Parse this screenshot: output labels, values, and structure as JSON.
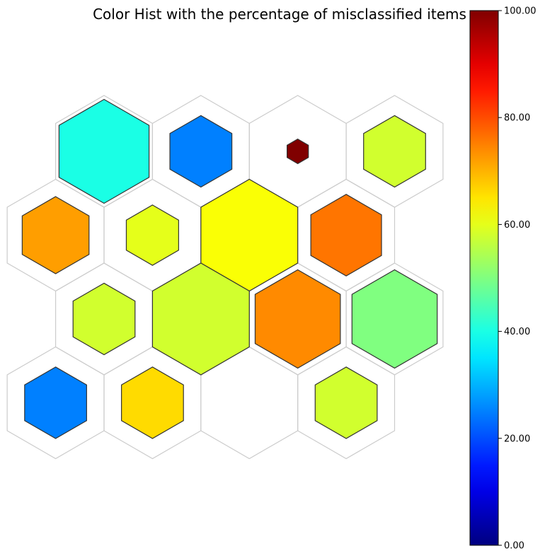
{
  "chart_data": {
    "type": "heatmap",
    "subtype": "hexagonal-som-grid",
    "title": "Color Hist with the percentage of misclassified items",
    "colormap": "jet",
    "colorbar": {
      "range": [
        0,
        100
      ],
      "ticks": [
        "0.00",
        "20.00",
        "40.00",
        "60.00",
        "80.00",
        "100.00"
      ],
      "position": "right"
    },
    "grid": {
      "rows": 4,
      "cols": 4
    },
    "cells": [
      {
        "row": 0,
        "col": 0,
        "percent": 40,
        "relative_size": 0.93
      },
      {
        "row": 0,
        "col": 1,
        "percent": 25,
        "relative_size": 0.64
      },
      {
        "row": 0,
        "col": 2,
        "percent": 100,
        "relative_size": 0.22
      },
      {
        "row": 0,
        "col": 3,
        "percent": 58,
        "relative_size": 0.64
      },
      {
        "row": 1,
        "col": 0,
        "percent": 72,
        "relative_size": 0.69
      },
      {
        "row": 1,
        "col": 1,
        "percent": 60,
        "relative_size": 0.54
      },
      {
        "row": 1,
        "col": 2,
        "percent": 62,
        "relative_size": 1.0
      },
      {
        "row": 1,
        "col": 3,
        "percent": 76,
        "relative_size": 0.73
      },
      {
        "row": 2,
        "col": 0,
        "percent": 58,
        "relative_size": 0.64
      },
      {
        "row": 2,
        "col": 1,
        "percent": 58,
        "relative_size": 1.0
      },
      {
        "row": 2,
        "col": 2,
        "percent": 74,
        "relative_size": 0.88
      },
      {
        "row": 2,
        "col": 3,
        "percent": 50,
        "relative_size": 0.88
      },
      {
        "row": 3,
        "col": 0,
        "percent": 25,
        "relative_size": 0.64
      },
      {
        "row": 3,
        "col": 1,
        "percent": 66,
        "relative_size": 0.64
      },
      {
        "row": 3,
        "col": 2,
        "percent": null,
        "relative_size": 0
      },
      {
        "row": 3,
        "col": 3,
        "percent": 58,
        "relative_size": 0.64
      }
    ]
  }
}
